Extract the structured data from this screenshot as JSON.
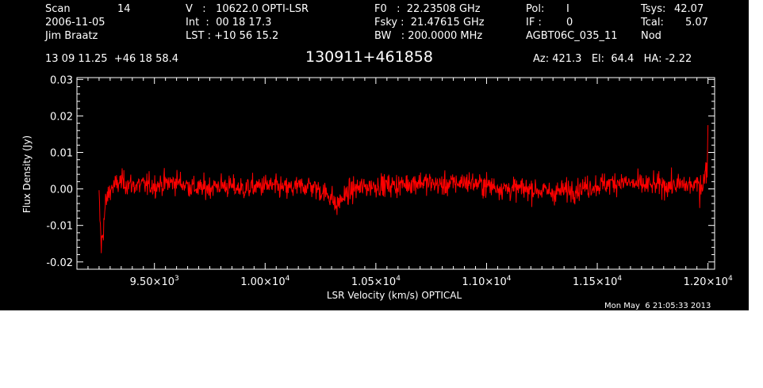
{
  "header": {
    "scan_label": "Scan",
    "scan_value": "14",
    "date": "2006-11-05",
    "observer": "Jim Braatz",
    "velocity_line": "V   :   10622.0 OPTI-LSR",
    "int_line": "Int  :  00 18 17.3",
    "lst_line": "LST : +10 56 15.2",
    "f0_line": "F0   :  22.23508 GHz",
    "fsky_line": "Fsky :  21.47615 GHz",
    "bw_line": "BW   : 200.0000 MHz",
    "pol_label": "Pol:",
    "pol_value": "I",
    "if_label": "IF :",
    "if_value": "0",
    "project": "AGBT06C_035_11",
    "tsys_label": "Tsys:",
    "tsys_value": "42.07",
    "tcal_label": "Tcal:",
    "tcal_value": "5.07",
    "mode": "Nod",
    "coords": "13 09 11.25  +46 18 58.4",
    "source": "130911+461858",
    "az_el_ha": "Az: 421.3   El:  64.4   HA: -2.22",
    "timestamp": "Mon May  6 21:05:33 2013"
  },
  "colors": {
    "background": "#000000",
    "axes": "#ffffff",
    "trace": "#ff0000"
  },
  "chart_data": {
    "type": "line",
    "xlabel": "LSR Velocity (km/s) OPTICAL",
    "ylabel": "Flux Density (Jy)",
    "xlim": [
      9150,
      12030
    ],
    "ylim": [
      -0.022,
      0.0305
    ],
    "grid": false,
    "y_ticks": [
      {
        "value": -0.02,
        "label": "-0.02"
      },
      {
        "value": -0.01,
        "label": "-0.01"
      },
      {
        "value": 0.0,
        "label": "0.00"
      },
      {
        "value": 0.01,
        "label": "0.01"
      },
      {
        "value": 0.02,
        "label": "0.02"
      },
      {
        "value": 0.03,
        "label": "0.03"
      }
    ],
    "x_ticks": [
      {
        "value": 9500,
        "mant": "9.50×10",
        "exp": "3"
      },
      {
        "value": 10000,
        "mant": "1.00×10",
        "exp": "4"
      },
      {
        "value": 10500,
        "mant": "1.05×10",
        "exp": "4"
      },
      {
        "value": 11000,
        "mant": "1.10×10",
        "exp": "4"
      },
      {
        "value": 11500,
        "mant": "1.15×10",
        "exp": "4"
      },
      {
        "value": 12000,
        "mant": "1.20×10",
        "exp": "4"
      }
    ],
    "series": [
      {
        "x": [
          9250,
          9260,
          9270,
          9280,
          9300,
          9350,
          9400,
          9500,
          9600,
          9700,
          9800,
          9900,
          10000,
          10100,
          10200,
          10300,
          10320,
          10340,
          10400,
          10500,
          10600,
          10700,
          10800,
          10900,
          11000,
          11100,
          11200,
          11300,
          11400,
          11500,
          11600,
          11700,
          11800,
          11900,
          11950,
          11980,
          11995,
          12000
        ],
        "y": [
          -0.003,
          -0.016,
          -0.01,
          -0.004,
          0.0,
          0.002,
          0.001,
          0.001,
          0.002,
          0.0,
          0.001,
          0.0,
          0.001,
          0.0,
          0.001,
          -0.002,
          -0.005,
          -0.003,
          0.0,
          0.001,
          0.001,
          0.002,
          0.001,
          0.002,
          0.001,
          0.0,
          0.0,
          -0.001,
          0.0,
          0.001,
          0.002,
          0.001,
          0.001,
          0.001,
          0.001,
          0.002,
          0.005,
          0.017
        ]
      }
    ]
  }
}
